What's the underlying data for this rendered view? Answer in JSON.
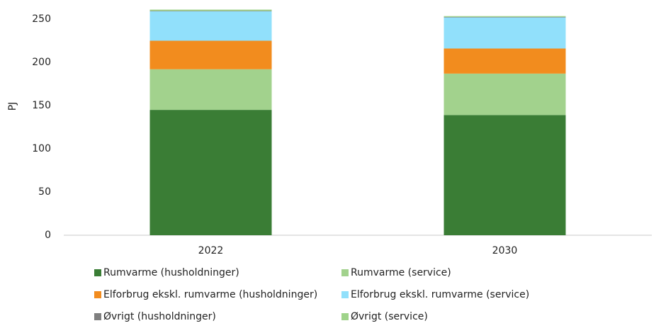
{
  "chart_data": {
    "type": "stacked_bar",
    "y_label": "PJ",
    "categories": [
      "2022",
      "2030"
    ],
    "series": [
      {
        "name": "Rumvarme (husholdninger)",
        "color": "#3a7d35",
        "values": [
          145,
          139
        ]
      },
      {
        "name": "Rumvarme (service)",
        "color": "#a2d28d",
        "values": [
          47,
          48
        ]
      },
      {
        "name": "Elforbrug ekskl. rumvarme (husholdninger)",
        "color": "#f28c1e",
        "values": [
          33,
          29
        ]
      },
      {
        "name": "Elforbrug ekskl. rumvarme (service)",
        "color": "#91e0fb",
        "values": [
          34,
          36
        ]
      },
      {
        "name": "Øvrigt (husholdninger)",
        "color": "#7f7f7f",
        "values": [
          0.5,
          0.5
        ]
      },
      {
        "name": "Øvrigt (service)",
        "color": "#9fd38a",
        "values": [
          1.5,
          1
        ]
      }
    ],
    "ylim": [
      0,
      250
    ],
    "yticks": [
      0,
      50,
      100,
      150,
      200,
      250
    ],
    "grid": false
  }
}
